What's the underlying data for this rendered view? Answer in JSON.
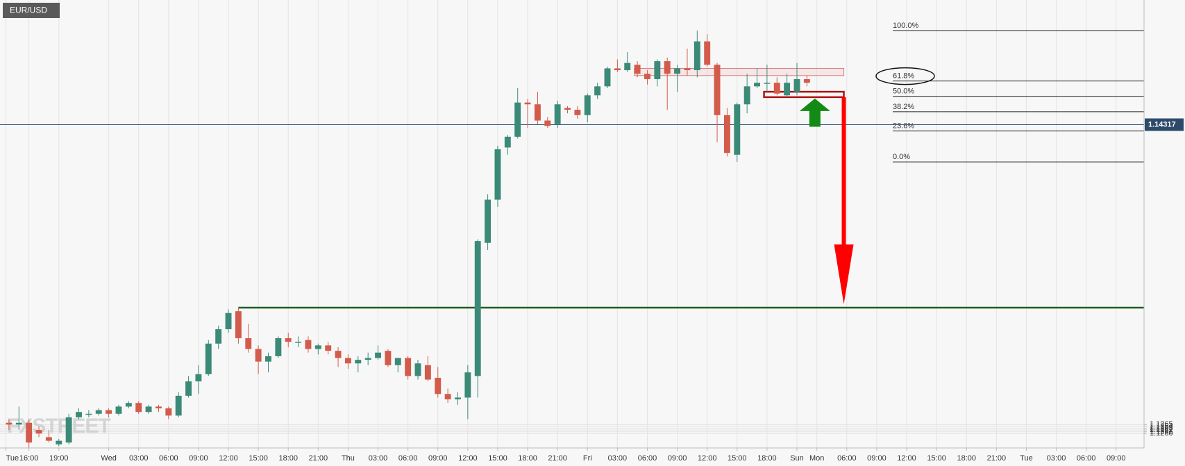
{
  "chart_data": {
    "type": "candlestick",
    "title": "EUR/USD",
    "watermark": "FXSTREET",
    "up_color": "#3b8a78",
    "down_color": "#d35b4b",
    "grid": true,
    "xlim": [
      -10.9,
      103.8
    ],
    "ylim": [
      1.1252,
      1.1501
    ],
    "xticks": [
      {
        "value": -10.3,
        "label": "Tue"
      },
      {
        "value": -8,
        "label": "16:00"
      },
      {
        "value": -5,
        "label": "19:00"
      },
      {
        "value": 0,
        "label": "Wed"
      },
      {
        "value": 3,
        "label": "03:00"
      },
      {
        "value": 6,
        "label": "06:00"
      },
      {
        "value": 9,
        "label": "09:00"
      },
      {
        "value": 12,
        "label": "12:00"
      },
      {
        "value": 15,
        "label": "15:00"
      },
      {
        "value": 18,
        "label": "18:00"
      },
      {
        "value": 21,
        "label": "21:00"
      },
      {
        "value": 24,
        "label": "Thu"
      },
      {
        "value": 27,
        "label": "03:00"
      },
      {
        "value": 30,
        "label": "06:00"
      },
      {
        "value": 33,
        "label": "09:00"
      },
      {
        "value": 36,
        "label": "12:00"
      },
      {
        "value": 39,
        "label": "15:00"
      },
      {
        "value": 42,
        "label": "18:00"
      },
      {
        "value": 45,
        "label": "21:00"
      },
      {
        "value": 48,
        "label": "Fri"
      },
      {
        "value": 51,
        "label": "03:00"
      },
      {
        "value": 54,
        "label": "06:00"
      },
      {
        "value": 57,
        "label": "09:00"
      },
      {
        "value": 60,
        "label": "12:00"
      },
      {
        "value": 63,
        "label": "15:00"
      },
      {
        "value": 66,
        "label": "18:00"
      },
      {
        "value": 69,
        "label": "Sun"
      },
      {
        "value": 71,
        "label": "Mon"
      },
      {
        "value": 74,
        "label": "06:00"
      },
      {
        "value": 77,
        "label": "09:00"
      },
      {
        "value": 80,
        "label": "12:00"
      },
      {
        "value": 83,
        "label": "15:00"
      },
      {
        "value": 86,
        "label": "18:00"
      },
      {
        "value": 89,
        "label": "21:00"
      },
      {
        "value": 92,
        "label": "Tue"
      },
      {
        "value": 95,
        "label": "03:00"
      },
      {
        "value": 98,
        "label": "06:00"
      },
      {
        "value": 101,
        "label": "09:00"
      }
    ],
    "yticks": [
      {
        "value": 1.126,
        "label": "1.1260"
      },
      1.1261,
      1.1262,
      1.1263,
      1.1264,
      1.1265
    ],
    "current_price": 1.14317,
    "support_line": 1.133,
    "zones": [
      [
        1.1459,
        1.1463
      ],
      [
        1.1447,
        1.145
      ]
    ],
    "fib_levels": [
      {
        "value": 1.1484,
        "label": "100.0%"
      },
      {
        "value": 1.1456,
        "label": "61.8%"
      },
      {
        "value": 1.14475,
        "label": "50.0%"
      },
      {
        "value": 1.14389,
        "label": "38.2%"
      },
      {
        "value": 1.14282,
        "label": "23.6%"
      },
      {
        "value": 1.1411,
        "label": "0.0%"
      }
    ],
    "x": [
      -10,
      -9,
      -8,
      -7,
      -6,
      -5,
      -4,
      -3,
      -2,
      -1,
      0,
      1,
      2,
      3,
      4,
      5,
      6,
      7,
      8,
      9,
      10,
      11,
      12,
      13,
      14,
      15,
      16,
      17,
      18,
      19,
      20,
      21,
      22,
      23,
      24,
      25,
      26,
      27,
      28,
      29,
      30,
      31,
      32,
      33,
      34,
      35,
      36,
      37,
      38,
      39,
      40,
      41,
      42,
      43,
      44,
      45,
      46,
      47,
      48,
      49,
      50,
      51,
      52,
      53,
      54,
      55,
      56,
      57,
      58,
      59,
      60,
      61,
      62,
      63,
      64,
      65,
      66,
      67,
      68,
      69,
      70
    ],
    "ohlc": [
      [
        1.1266,
        1.1268,
        1.1262,
        1.1265
      ],
      [
        1.1265,
        1.1275,
        1.1262,
        1.1266
      ],
      [
        1.1266,
        1.1268,
        1.1252,
        1.1255
      ],
      [
        1.1262,
        1.1264,
        1.1258,
        1.126
      ],
      [
        1.1258,
        1.1262,
        1.1255,
        1.1256
      ],
      [
        1.1254,
        1.1257,
        1.1253,
        1.1256
      ],
      [
        1.1255,
        1.1271,
        1.1254,
        1.1269
      ],
      [
        1.1269,
        1.1274,
        1.1268,
        1.1272
      ],
      [
        1.1271,
        1.1273,
        1.1269,
        1.1271
      ],
      [
        1.1271,
        1.1274,
        1.127,
        1.1273
      ],
      [
        1.1273,
        1.1274,
        1.1269,
        1.1271
      ],
      [
        1.1271,
        1.1276,
        1.127,
        1.1275
      ],
      [
        1.1275,
        1.1278,
        1.1274,
        1.1277
      ],
      [
        1.1277,
        1.1278,
        1.1271,
        1.1272
      ],
      [
        1.1272,
        1.1276,
        1.1271,
        1.1275
      ],
      [
        1.1275,
        1.1276,
        1.1272,
        1.1274
      ],
      [
        1.1274,
        1.1275,
        1.1268,
        1.127
      ],
      [
        1.127,
        1.1283,
        1.1269,
        1.1281
      ],
      [
        1.1281,
        1.1292,
        1.128,
        1.1289
      ],
      [
        1.1289,
        1.1298,
        1.1282,
        1.1293
      ],
      [
        1.1293,
        1.1312,
        1.1292,
        1.131
      ],
      [
        1.131,
        1.132,
        1.1307,
        1.1318
      ],
      [
        1.1318,
        1.1329,
        1.1316,
        1.1327
      ],
      [
        1.1328,
        1.133,
        1.131,
        1.1313
      ],
      [
        1.1313,
        1.1321,
        1.1305,
        1.1307
      ],
      [
        1.1307,
        1.1309,
        1.1293,
        1.13
      ],
      [
        1.13,
        1.1305,
        1.1294,
        1.1303
      ],
      [
        1.1303,
        1.1314,
        1.1302,
        1.1313
      ],
      [
        1.1313,
        1.1316,
        1.1308,
        1.1311
      ],
      [
        1.1311,
        1.1314,
        1.1308,
        1.1311
      ],
      [
        1.1312,
        1.1314,
        1.1305,
        1.1307
      ],
      [
        1.1307,
        1.131,
        1.1304,
        1.1309
      ],
      [
        1.1309,
        1.1311,
        1.1304,
        1.1306
      ],
      [
        1.1306,
        1.1308,
        1.1297,
        1.1302
      ],
      [
        1.1302,
        1.1304,
        1.1296,
        1.1299
      ],
      [
        1.1299,
        1.1303,
        1.1294,
        1.1301
      ],
      [
        1.1301,
        1.1305,
        1.1298,
        1.1302
      ],
      [
        1.1302,
        1.1309,
        1.1301,
        1.1305
      ],
      [
        1.1306,
        1.1307,
        1.1297,
        1.1298
      ],
      [
        1.1298,
        1.1302,
        1.1294,
        1.1302
      ],
      [
        1.1302,
        1.1303,
        1.129,
        1.1292
      ],
      [
        1.1292,
        1.1301,
        1.129,
        1.1299
      ],
      [
        1.1298,
        1.1303,
        1.1289,
        1.129
      ],
      [
        1.1291,
        1.1297,
        1.128,
        1.1282
      ],
      [
        1.1282,
        1.1285,
        1.1277,
        1.1279
      ],
      [
        1.1279,
        1.1283,
        1.1276,
        1.128
      ],
      [
        1.128,
        1.1298,
        1.1268,
        1.1294
      ],
      [
        1.1292,
        1.1368,
        1.128,
        1.1367
      ],
      [
        1.1366,
        1.1393,
        1.1362,
        1.139
      ],
      [
        1.139,
        1.142,
        1.1386,
        1.1418
      ],
      [
        1.1419,
        1.1426,
        1.1415,
        1.1425
      ],
      [
        1.1425,
        1.1452,
        1.1424,
        1.1444
      ],
      [
        1.1444,
        1.1446,
        1.143,
        1.1443
      ],
      [
        1.1443,
        1.145,
        1.1432,
        1.1434
      ],
      [
        1.1434,
        1.1436,
        1.143,
        1.1431
      ],
      [
        1.1432,
        1.1445,
        1.143,
        1.1443
      ],
      [
        1.1441,
        1.1442,
        1.1438,
        1.144
      ],
      [
        1.144,
        1.1442,
        1.1435,
        1.1437
      ],
      [
        1.1437,
        1.1449,
        1.1433,
        1.1448
      ],
      [
        1.1448,
        1.1455,
        1.1446,
        1.1453
      ],
      [
        1.1453,
        1.1464,
        1.1452,
        1.1463
      ],
      [
        1.1463,
        1.1468,
        1.1461,
        1.1462
      ],
      [
        1.1462,
        1.1472,
        1.1461,
        1.1466
      ],
      [
        1.1465,
        1.1467,
        1.1458,
        1.146
      ],
      [
        1.146,
        1.1462,
        1.1454,
        1.1457
      ],
      [
        1.1457,
        1.1468,
        1.1453,
        1.1467
      ],
      [
        1.1467,
        1.1469,
        1.144,
        1.146
      ],
      [
        1.146,
        1.1465,
        1.145,
        1.1463
      ],
      [
        1.1463,
        1.1474,
        1.1459,
        1.1462
      ],
      [
        1.1462,
        1.1484,
        1.1458,
        1.1478
      ],
      [
        1.1478,
        1.1482,
        1.1464,
        1.1465
      ],
      [
        1.1465,
        1.1466,
        1.1422,
        1.1437
      ],
      [
        1.1437,
        1.1441,
        1.1414,
        1.1416
      ],
      [
        1.1415,
        1.1444,
        1.1411,
        1.1443
      ],
      [
        1.1443,
        1.146,
        1.1438,
        1.1453
      ],
      [
        1.1453,
        1.1463,
        1.1452,
        1.1455
      ],
      [
        1.1455,
        1.1465,
        1.145,
        1.1455
      ],
      [
        1.1455,
        1.1458,
        1.1448,
        1.1449
      ],
      [
        1.1448,
        1.146,
        1.1447,
        1.1455
      ],
      [
        1.145,
        1.1466,
        1.1448,
        1.1457
      ],
      [
        1.1457,
        1.1459,
        1.1453,
        1.1455
      ]
    ]
  }
}
